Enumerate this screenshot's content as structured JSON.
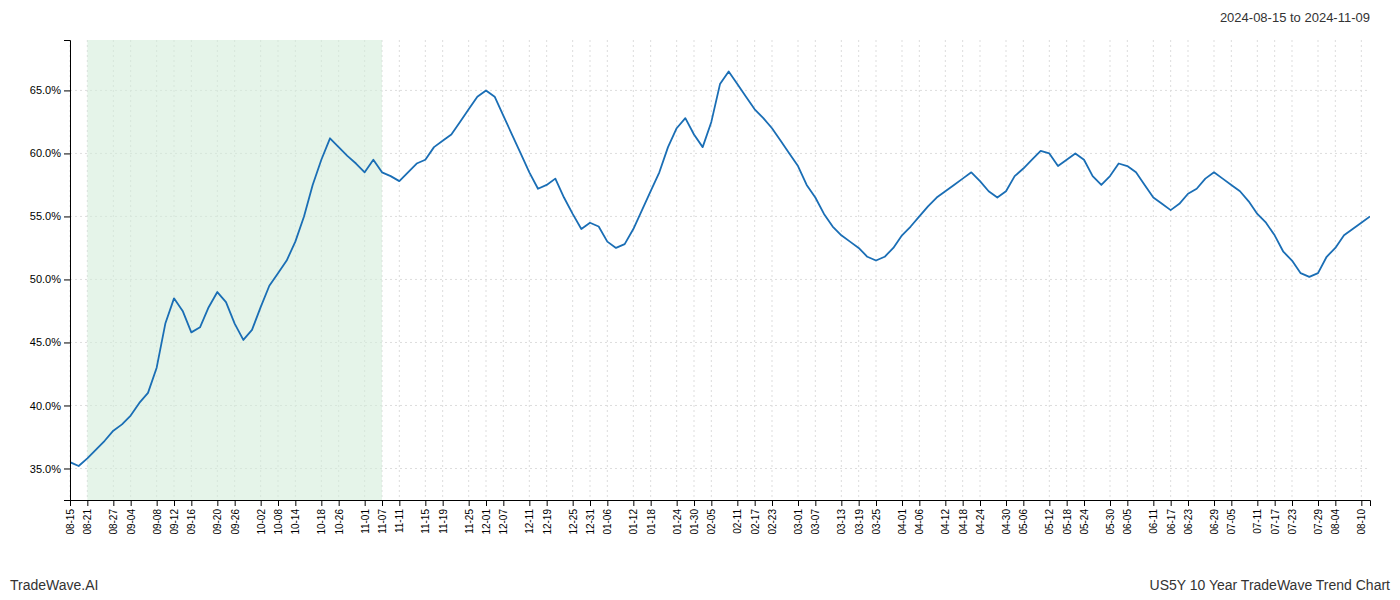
{
  "chart_data": {
    "type": "line",
    "title": "2024-08-15 to 2024-11-09",
    "annotations": [
      "TradeWave.AI",
      "US5Y 10 Year TradeWave Trend Chart"
    ],
    "color": "#1a6eb5",
    "grid": true,
    "shaded_range": {
      "from": "08-21",
      "to": "11-07",
      "color": "#d4edda"
    },
    "ylim": [
      32.5,
      69.0
    ],
    "yticks": [
      {
        "value": 35.0,
        "label": "35.0%"
      },
      {
        "value": 40.0,
        "label": "40.0%"
      },
      {
        "value": 45.0,
        "label": "45.0%"
      },
      {
        "value": 50.0,
        "label": "50.0%"
      },
      {
        "value": 55.0,
        "label": "55.0%"
      },
      {
        "value": 60.0,
        "label": "60.0%"
      },
      {
        "value": 65.0,
        "label": "65.0%"
      }
    ],
    "categories": [
      "08-15",
      null,
      "08-21",
      null,
      null,
      "08-27",
      null,
      "09-04",
      null,
      null,
      "09-08",
      null,
      "09-12",
      null,
      "09-16",
      null,
      null,
      "09-20",
      null,
      "09-26",
      null,
      null,
      "10-02",
      null,
      "10-08",
      null,
      "10-14",
      null,
      null,
      "10-18",
      null,
      "10-26",
      null,
      null,
      "11-01",
      null,
      "11-07",
      null,
      "11-11",
      null,
      null,
      "11-15",
      null,
      "11-19",
      null,
      null,
      "11-25",
      null,
      "12-01",
      null,
      "12-07",
      null,
      null,
      "12-11",
      null,
      "12-19",
      null,
      null,
      "12-25",
      null,
      "12-31",
      null,
      "01-06",
      null,
      null,
      "01-12",
      null,
      "01-18",
      null,
      null,
      "01-24",
      null,
      "01-30",
      null,
      "02-05",
      null,
      null,
      "02-11",
      null,
      "02-17",
      null,
      "02-23",
      null,
      null,
      "03-01",
      null,
      "03-07",
      null,
      null,
      "03-13",
      null,
      "03-19",
      null,
      "03-25",
      null,
      null,
      "04-01",
      null,
      "04-06",
      null,
      null,
      "04-12",
      null,
      "04-18",
      null,
      "04-24",
      null,
      null,
      "04-30",
      null,
      "05-06",
      null,
      null,
      "05-12",
      null,
      "05-18",
      null,
      "05-24",
      null,
      null,
      "05-30",
      null,
      "06-05",
      null,
      null,
      "06-11",
      null,
      "06-17",
      null,
      "06-23",
      null,
      null,
      "06-29",
      null,
      "07-05",
      null,
      null,
      "07-11",
      null,
      "07-17",
      null,
      "07-23",
      null,
      null,
      "07-29",
      null,
      "08-04",
      null,
      null,
      "08-10",
      null
    ],
    "values": [
      35.5,
      35.2,
      35.8,
      36.5,
      37.2,
      38.0,
      38.5,
      39.2,
      40.2,
      41.0,
      43.0,
      46.5,
      48.5,
      47.5,
      45.8,
      46.2,
      47.8,
      49.0,
      48.2,
      46.5,
      45.2,
      46.0,
      47.8,
      49.5,
      50.5,
      51.5,
      53.0,
      55.0,
      57.5,
      59.5,
      61.2,
      60.5,
      59.8,
      59.2,
      58.5,
      59.5,
      58.5,
      58.2,
      57.8,
      58.5,
      59.2,
      59.5,
      60.5,
      61.0,
      61.5,
      62.5,
      63.5,
      64.5,
      65.0,
      64.5,
      63.0,
      61.5,
      60.0,
      58.5,
      57.2,
      57.5,
      58.0,
      56.5,
      55.2,
      54.0,
      54.5,
      54.2,
      53.0,
      52.5,
      52.8,
      54.0,
      55.5,
      57.0,
      58.5,
      60.5,
      62.0,
      62.8,
      61.5,
      60.5,
      62.5,
      65.5,
      66.5,
      65.5,
      64.5,
      63.5,
      62.8,
      62.0,
      61.0,
      60.0,
      59.0,
      57.5,
      56.5,
      55.2,
      54.2,
      53.5,
      53.0,
      52.5,
      51.8,
      51.5,
      51.8,
      52.5,
      53.5,
      54.2,
      55.0,
      55.8,
      56.5,
      57.0,
      57.5,
      58.0,
      58.5,
      57.8,
      57.0,
      56.5,
      57.0,
      58.2,
      58.8,
      59.5,
      60.2,
      60.0,
      59.0,
      59.5,
      60.0,
      59.5,
      58.2,
      57.5,
      58.2,
      59.2,
      59.0,
      58.5,
      57.5,
      56.5,
      56.0,
      55.5,
      56.0,
      56.8,
      57.2,
      58.0,
      58.5,
      58.0,
      57.5,
      57.0,
      56.2,
      55.2,
      54.5,
      53.5,
      52.2,
      51.5,
      50.5,
      50.2,
      50.5,
      51.8,
      52.5,
      53.5,
      54.0,
      54.5,
      55.0
    ]
  }
}
